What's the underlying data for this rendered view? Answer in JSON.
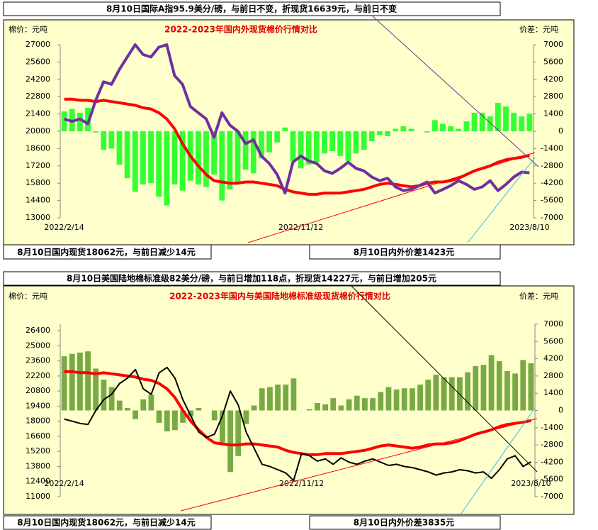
{
  "chart_data": [
    {
      "type": "combo",
      "header_note": "8月10日国际A指95.9美分/磅，与前日不变，折现货16639元，与前日不变",
      "title": "2022-2023年国内外现货棉价行情对比",
      "ylabel": "棉价：元吨",
      "y2label": "价差：元吨",
      "footer_notes": [
        "8月10日国内现货18062元，与前日减少14元",
        "8月10日内外价差1423元"
      ],
      "categories": [
        "2022/2/14",
        null,
        null,
        null,
        null,
        null,
        null,
        null,
        null,
        null,
        null,
        null,
        null,
        null,
        null,
        null,
        null,
        null,
        null,
        null,
        null,
        null,
        null,
        null,
        null,
        null,
        null,
        null,
        null,
        null,
        "2022/11/12",
        null,
        null,
        null,
        null,
        null,
        null,
        null,
        null,
        null,
        null,
        null,
        null,
        null,
        null,
        null,
        null,
        null,
        null,
        null,
        null,
        null,
        null,
        null,
        null,
        null,
        null,
        null,
        null,
        "2023/8/10"
      ],
      "ylim": [
        13000,
        27000
      ],
      "yticks": [
        13000,
        14400,
        15800,
        17200,
        18600,
        20000,
        21400,
        22800,
        24200,
        25600,
        27000
      ],
      "y2lim": [
        -7000,
        7000
      ],
      "y2ticks": [
        -7000,
        -5600,
        -4200,
        -2800,
        -1400,
        0,
        1400,
        2800,
        4200,
        5600,
        7000
      ],
      "series": [
        {
          "type": "bar",
          "axis": "y2",
          "color": "#33ff33",
          "values": [
            1600,
            1800,
            1500,
            1900,
            -100,
            -1500,
            -1400,
            -2700,
            -3800,
            -4900,
            -4300,
            -4200,
            -5300,
            -6000,
            -4300,
            -4800,
            -4000,
            -4300,
            -4500,
            -3500,
            -5600,
            -4700,
            -4200,
            -3100,
            -3400,
            -2200,
            -1700,
            -900,
            300,
            -2400,
            -3000,
            -2700,
            -2500,
            -1800,
            -1600,
            -2000,
            -2400,
            -1800,
            -1500,
            -800,
            -300,
            -400,
            200,
            400,
            200,
            0,
            -100,
            900,
            600,
            400,
            200,
            800,
            1500,
            1500,
            1200,
            2300,
            2000,
            1500,
            1200,
            1423
          ]
        },
        {
          "type": "line",
          "color": "#ff0000",
          "width": 4,
          "values": [
            22600,
            22600,
            22500,
            22500,
            22400,
            22500,
            22400,
            22300,
            22200,
            22100,
            21900,
            21800,
            21500,
            21000,
            20200,
            19000,
            18000,
            17200,
            16500,
            16000,
            15900,
            15800,
            15800,
            15900,
            15900,
            15800,
            15700,
            15600,
            15300,
            15100,
            15000,
            14900,
            14900,
            15000,
            15000,
            15000,
            15100,
            15200,
            15300,
            15500,
            15700,
            15800,
            15700,
            15600,
            15500,
            15600,
            15800,
            15900,
            15900,
            16000,
            16200,
            16500,
            16800,
            17000,
            17200,
            17500,
            17700,
            17800,
            17900,
            18062
          ]
        },
        {
          "type": "line",
          "color": "#7030a0",
          "width": 4,
          "values": [
            21000,
            20800,
            21000,
            20600,
            22500,
            24000,
            23800,
            25000,
            26000,
            27000,
            26200,
            26000,
            26800,
            27000,
            24500,
            23800,
            22000,
            21500,
            21000,
            19500,
            21500,
            20500,
            20000,
            19000,
            19300,
            18000,
            17400,
            16500,
            15000,
            17500,
            18000,
            17600,
            17400,
            16800,
            16600,
            17000,
            17500,
            17000,
            16800,
            16300,
            16000,
            16200,
            15500,
            15200,
            15300,
            15600,
            15900,
            15000,
            15300,
            15600,
            16000,
            15700,
            15300,
            15500,
            16000,
            15200,
            15700,
            16300,
            16700,
            16639
          ]
        }
      ]
    },
    {
      "type": "combo",
      "header_note": "8月10日美国陆地棉标准级82美分/磅，与前日增加118点，折现货14227元，与前日增加205元",
      "title": "2022-2023年国内与美国陆地棉标准级现货棉价行情对比",
      "ylabel": "棉价：元吨",
      "y2label": "价差：元吨",
      "footer_notes": [
        "8月10日国内现货18062元，与前日减少14元",
        "8月10日内外价差3835元"
      ],
      "categories": [
        "2022/2/14",
        null,
        null,
        null,
        null,
        null,
        null,
        null,
        null,
        null,
        null,
        null,
        null,
        null,
        null,
        null,
        null,
        null,
        null,
        null,
        null,
        null,
        null,
        null,
        null,
        null,
        null,
        null,
        null,
        null,
        "2022/11/12",
        null,
        null,
        null,
        null,
        null,
        null,
        null,
        null,
        null,
        null,
        null,
        null,
        null,
        null,
        null,
        null,
        null,
        null,
        null,
        null,
        null,
        null,
        null,
        null,
        null,
        null,
        null,
        null,
        "2023/8/10"
      ],
      "ylim": [
        11000,
        27000
      ],
      "yticks": [
        11000,
        12400,
        13800,
        15200,
        16600,
        18000,
        19400,
        20800,
        22200,
        23600,
        25000,
        26400
      ],
      "y2lim": [
        -7000,
        7000
      ],
      "y2ticks": [
        -7000,
        -5600,
        -4200,
        -2800,
        -1400,
        0,
        1400,
        2800,
        4200,
        5600,
        7000
      ],
      "series": [
        {
          "type": "bar",
          "axis": "y2",
          "color": "#77aa44",
          "values": [
            4400,
            4600,
            4700,
            4800,
            3400,
            2500,
            1900,
            800,
            200,
            -700,
            900,
            1300,
            -1000,
            -1700,
            -1600,
            -1000,
            -500,
            200,
            0,
            -800,
            -2600,
            -5000,
            -3700,
            -1100,
            400,
            1800,
            1900,
            2100,
            2100,
            2600,
            0,
            100,
            600,
            500,
            1000,
            400,
            900,
            1200,
            1000,
            1000,
            1500,
            1900,
            1700,
            1800,
            1800,
            2100,
            2500,
            2900,
            2700,
            2700,
            2700,
            3100,
            3600,
            3700,
            4500,
            4000,
            3200,
            3000,
            4100,
            3835
          ]
        },
        {
          "type": "line",
          "color": "#ff0000",
          "width": 4,
          "values": [
            22600,
            22600,
            22500,
            22500,
            22400,
            22500,
            22400,
            22300,
            22200,
            22100,
            21900,
            21800,
            21500,
            21000,
            20200,
            19000,
            18000,
            17200,
            16500,
            16000,
            15900,
            15800,
            15800,
            15900,
            15900,
            15800,
            15700,
            15600,
            15300,
            15100,
            15000,
            14900,
            14900,
            15000,
            15000,
            15000,
            15100,
            15200,
            15300,
            15500,
            15700,
            15800,
            15700,
            15600,
            15500,
            15600,
            15800,
            15900,
            15900,
            16000,
            16200,
            16500,
            16800,
            17000,
            17200,
            17500,
            17700,
            17800,
            17900,
            18062
          ]
        },
        {
          "type": "line",
          "color": "#000000",
          "width": 2,
          "values": [
            18200,
            18000,
            17800,
            17700,
            19000,
            20000,
            20500,
            21500,
            22000,
            22800,
            21000,
            20500,
            22500,
            23000,
            22000,
            20000,
            18500,
            17000,
            16500,
            16800,
            18500,
            20800,
            19500,
            17000,
            15500,
            14000,
            13800,
            13500,
            13200,
            12500,
            15000,
            14800,
            14300,
            14500,
            14000,
            14600,
            14200,
            14000,
            14300,
            14500,
            14200,
            13900,
            14000,
            13800,
            13700,
            13500,
            13300,
            13000,
            13200,
            13300,
            13500,
            13400,
            13200,
            13300,
            12700,
            13500,
            14500,
            14800,
            13800,
            14227
          ]
        }
      ]
    }
  ]
}
